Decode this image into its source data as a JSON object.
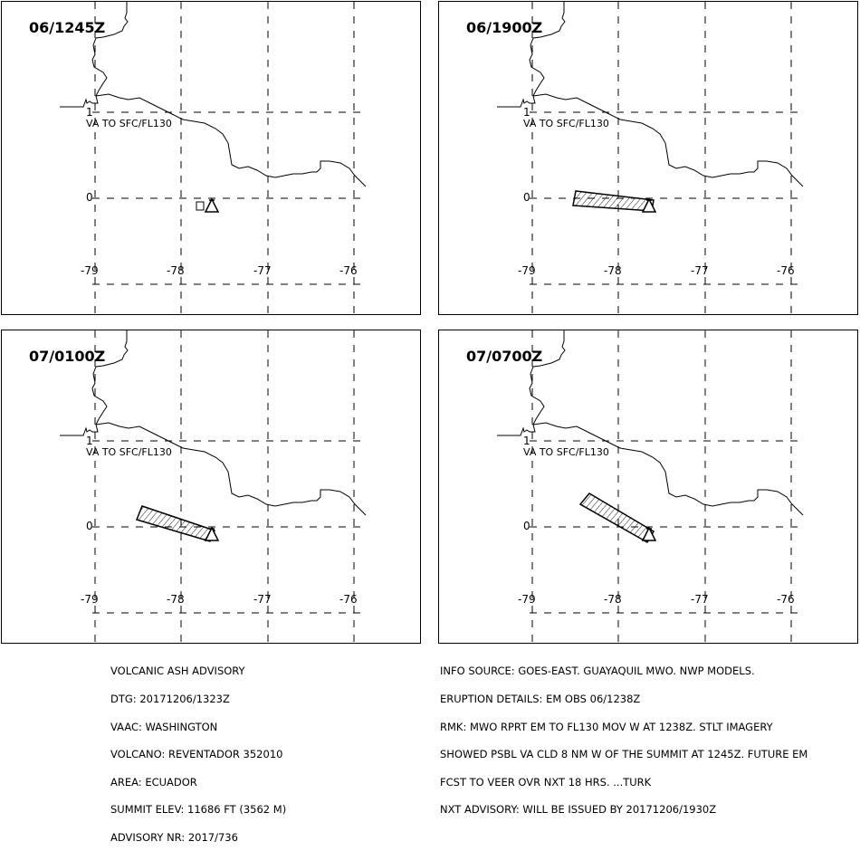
{
  "panels": [
    {
      "time": "06/1245Z",
      "level_label": "VA TO SFC/FL130",
      "ash": "none"
    },
    {
      "time": "06/1900Z",
      "level_label": "VA TO SFC/FL130",
      "ash": "short"
    },
    {
      "time": "07/0100Z",
      "level_label": "VA TO SFC/FL130",
      "ash": "long"
    },
    {
      "time": "07/0700Z",
      "level_label": "VA TO SFC/FL130",
      "ash": "longer"
    }
  ],
  "axes": {
    "lat_labels": [
      "1",
      "0"
    ],
    "lon_labels": [
      "-79",
      "-78",
      "-77",
      "-76"
    ]
  },
  "advisory_left": [
    "VOLCANIC ASH ADVISORY",
    "DTG: 20171206/1323Z",
    "VAAC: WASHINGTON",
    "VOLCANO: REVENTADOR 352010",
    "AREA: ECUADOR",
    "SUMMIT ELEV: 11686 FT (3562 M)",
    "ADVISORY NR: 2017/736"
  ],
  "advisory_right": [
    "INFO SOURCE: GOES-EAST. GUAYAQUIL MWO. NWP MODELS.",
    "ERUPTION DETAILS: EM OBS 06/1238Z",
    "RMK: MWO RPRT EM TO FL130 MOV W AT 1238Z. STLT IMAGERY",
    "SHOWED PSBL VA CLD 8 NM W OF THE SUMMIT AT 1245Z. FUTURE EM",
    "FCST TO VEER OVR NXT 18 HRS. ...TURK",
    "NXT ADVISORY: WILL BE ISSUED BY 20171206/1930Z"
  ],
  "icons": {
    "volcano": "volcano-triangle-icon",
    "start_box": "square-marker-icon"
  }
}
